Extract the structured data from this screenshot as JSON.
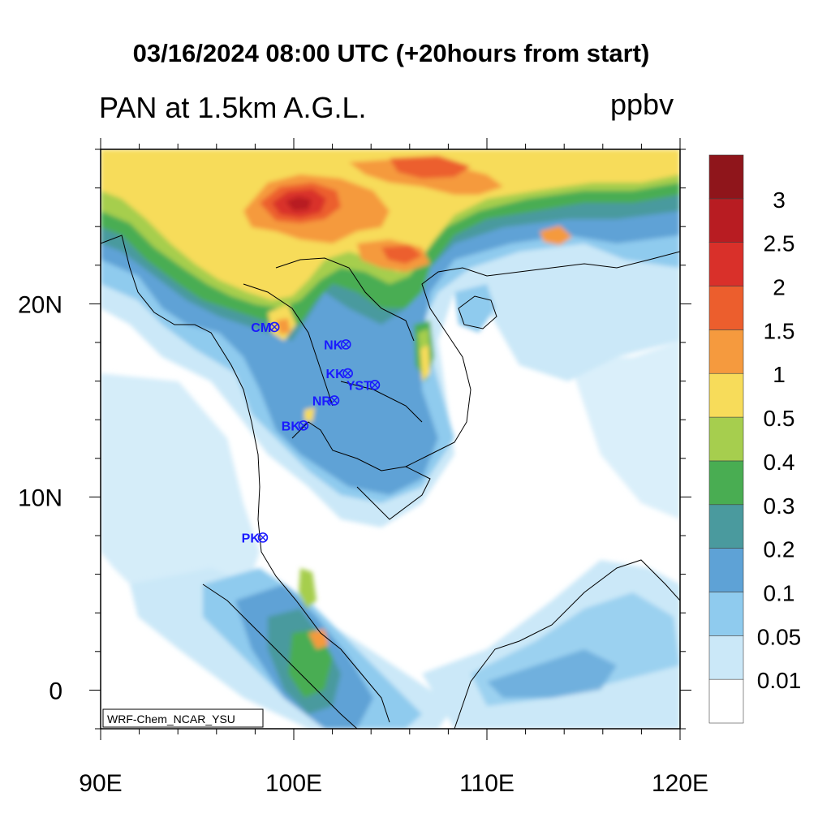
{
  "title": {
    "main": "03/16/2024 08:00 UTC (+20hours from start)",
    "left": "PAN at 1.5km A.G.L.",
    "units": "ppbv"
  },
  "axes": {
    "x_ticks": [
      {
        "value": 90,
        "label": "90E"
      },
      {
        "value": 100,
        "label": "100E"
      },
      {
        "value": 110,
        "label": "110E"
      },
      {
        "value": 120,
        "label": "120E"
      }
    ],
    "y_ticks": [
      {
        "value": 0,
        "label": "0"
      },
      {
        "value": 10,
        "label": "10N"
      },
      {
        "value": 20,
        "label": "20N"
      }
    ],
    "lon_range": [
      90,
      120
    ],
    "lat_range": [
      -2,
      28
    ]
  },
  "colorbar": {
    "labels": [
      "0.01",
      "0.05",
      "0.1",
      "0.2",
      "0.3",
      "0.4",
      "0.5",
      "1",
      "1.5",
      "2",
      "2.5",
      "3"
    ],
    "colors": [
      "#ffffff",
      "#cbe8f8",
      "#8fcbee",
      "#5ea2d6",
      "#4a9a9e",
      "#49ad52",
      "#a6ce4e",
      "#f7dc5a",
      "#f59a3e",
      "#ec5e2d",
      "#d9302a",
      "#b81c22",
      "#8f151b"
    ]
  },
  "stations": [
    {
      "name": "CM",
      "lon": 99.0,
      "lat": 18.8
    },
    {
      "name": "NK",
      "lon": 102.7,
      "lat": 17.9
    },
    {
      "name": "KK",
      "lon": 102.8,
      "lat": 16.4
    },
    {
      "name": "YST",
      "lon": 104.2,
      "lat": 15.8
    },
    {
      "name": "NR",
      "lon": 102.1,
      "lat": 15.0
    },
    {
      "name": "BK",
      "lon": 100.5,
      "lat": 13.7
    },
    {
      "name": "PK",
      "lon": 98.4,
      "lat": 7.9
    }
  ],
  "credit": "WRF-Chem_NCAR_YSU"
}
